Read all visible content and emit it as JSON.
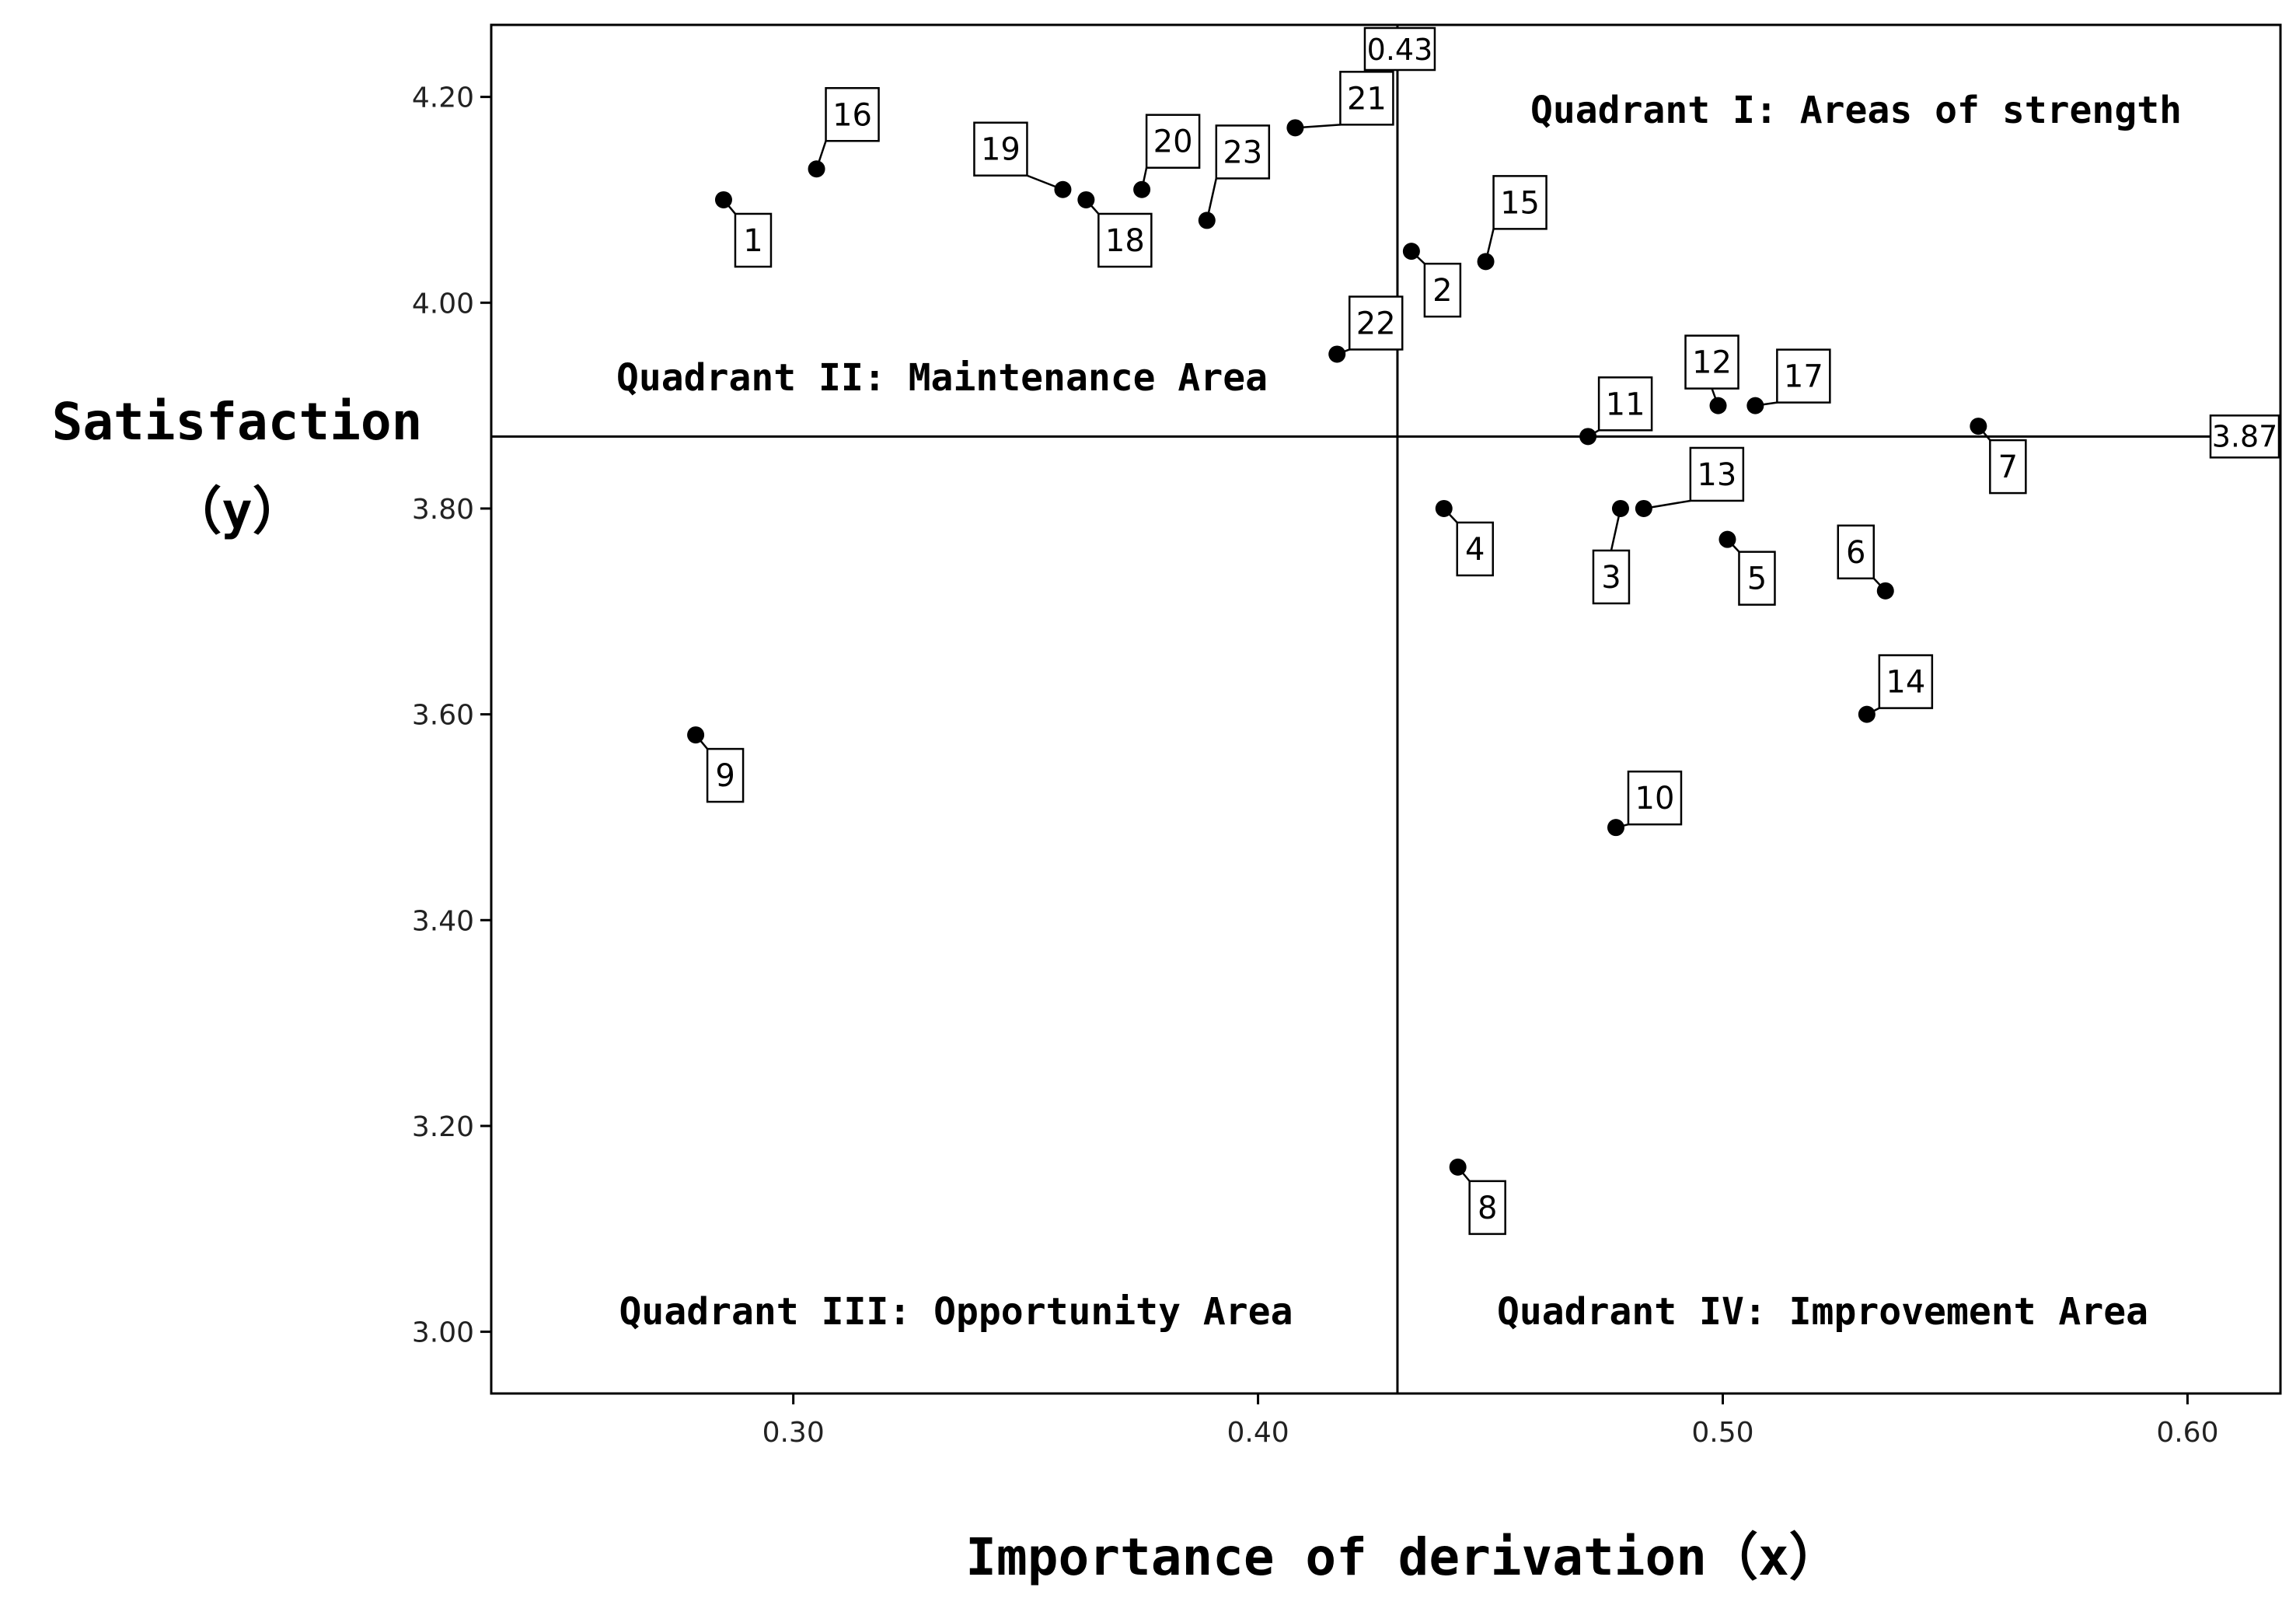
{
  "chart_data": {
    "type": "scatter",
    "title": "",
    "xlabel": "Importance of derivation（x）",
    "ylabel_line1": "Satisfaction",
    "ylabel_line2": "（y）",
    "xlim": [
      0.235,
      0.62
    ],
    "ylim": [
      2.94,
      4.27
    ],
    "x_ticks": [
      {
        "value": 0.3,
        "label": "0.30"
      },
      {
        "value": 0.4,
        "label": "0.40"
      },
      {
        "value": 0.5,
        "label": "0.50"
      },
      {
        "value": 0.6,
        "label": "0.60"
      }
    ],
    "y_ticks": [
      {
        "value": 3.0,
        "label": "3.00"
      },
      {
        "value": 3.2,
        "label": "3.20"
      },
      {
        "value": 3.4,
        "label": "3.40"
      },
      {
        "value": 3.6,
        "label": "3.60"
      },
      {
        "value": 3.8,
        "label": "3.80"
      },
      {
        "value": 4.0,
        "label": "4.00"
      },
      {
        "value": 4.2,
        "label": "4.20"
      }
    ],
    "reference_lines": {
      "vertical": {
        "x": 0.43,
        "label": "0.43"
      },
      "horizontal": {
        "y": 3.87,
        "label": "3.87"
      }
    },
    "quadrants": {
      "q1": "Quadrant I: Areas of strength",
      "q2": "Quadrant II: Maintenance Area",
      "q3": "Quadrant III: Opportunity Area",
      "q4": "Quadrant IV: Improvement Area"
    },
    "points": [
      {
        "id": "1",
        "x": 0.285,
        "y": 4.1
      },
      {
        "id": "2",
        "x": 0.433,
        "y": 4.05
      },
      {
        "id": "3",
        "x": 0.478,
        "y": 3.8
      },
      {
        "id": "4",
        "x": 0.44,
        "y": 3.8
      },
      {
        "id": "5",
        "x": 0.501,
        "y": 3.77
      },
      {
        "id": "6",
        "x": 0.535,
        "y": 3.72
      },
      {
        "id": "7",
        "x": 0.555,
        "y": 3.88
      },
      {
        "id": "8",
        "x": 0.443,
        "y": 3.16
      },
      {
        "id": "9",
        "x": 0.279,
        "y": 3.58
      },
      {
        "id": "10",
        "x": 0.477,
        "y": 3.49
      },
      {
        "id": "11",
        "x": 0.471,
        "y": 3.87
      },
      {
        "id": "12",
        "x": 0.499,
        "y": 3.9
      },
      {
        "id": "13",
        "x": 0.483,
        "y": 3.8
      },
      {
        "id": "14",
        "x": 0.531,
        "y": 3.6
      },
      {
        "id": "15",
        "x": 0.449,
        "y": 4.04
      },
      {
        "id": "16",
        "x": 0.305,
        "y": 4.13
      },
      {
        "id": "17",
        "x": 0.507,
        "y": 3.9
      },
      {
        "id": "18",
        "x": 0.363,
        "y": 4.1
      },
      {
        "id": "19",
        "x": 0.358,
        "y": 4.11
      },
      {
        "id": "20",
        "x": 0.375,
        "y": 4.11
      },
      {
        "id": "21",
        "x": 0.408,
        "y": 4.17
      },
      {
        "id": "22",
        "x": 0.417,
        "y": 3.95
      },
      {
        "id": "23",
        "x": 0.389,
        "y": 4.08
      }
    ],
    "grid": false,
    "legend": "none"
  }
}
